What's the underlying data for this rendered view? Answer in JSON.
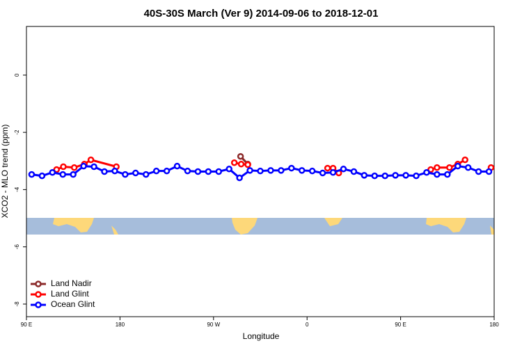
{
  "chart_data": {
    "type": "line",
    "title": "40S-30S March (Ver 9)   2014-09-06 to 2018-12-01",
    "xlabel": "Longitude",
    "ylabel": "XCO2 - MLO trend (ppm)",
    "xlim": [
      90,
      540
    ],
    "ylim": [
      -8.44,
      1.7
    ],
    "xticks": [
      {
        "value": 90,
        "label": "90 E"
      },
      180,
      {
        "value": 270,
        "label": "90 W"
      },
      {
        "value": 360,
        "label": "0"
      },
      {
        "value": 450,
        "label": "90 E"
      },
      {
        "value": 540,
        "label": "180"
      }
    ],
    "yticks": [
      0,
      -2,
      -4,
      -6,
      -8
    ],
    "legend": "bottom-left",
    "series": [
      {
        "name": "Land Nadir",
        "color": "#8b2a2a",
        "x": [
          296,
          303
        ],
        "values": [
          -2.84,
          -3.11
        ]
      },
      {
        "name": "Land Glint",
        "color": "#ff0000",
        "x": [
          119,
          125.5,
          136,
          145.7,
          152,
          176.5,
          null,
          290,
          296.6,
          303,
          null,
          379.7,
          385,
          390.5,
          null,
          479,
          485,
          497,
          505,
          512,
          null,
          537
        ],
        "values": [
          -3.3,
          -3.2,
          -3.23,
          -3.11,
          -2.96,
          -3.2,
          null,
          -3.06,
          -3.11,
          -3.13,
          null,
          -3.25,
          -3.25,
          -3.42,
          null,
          -3.3,
          -3.23,
          -3.23,
          -3.11,
          -2.96,
          null,
          -3.23
        ]
      },
      {
        "name": "Ocean Glint",
        "color": "#0000ff",
        "x": [
          95,
          105,
          115,
          125,
          135,
          145,
          155,
          165,
          175,
          185,
          195,
          205,
          215,
          225,
          235,
          245,
          255,
          265,
          275,
          285,
          295,
          305,
          315,
          325,
          335,
          345,
          355,
          365,
          375,
          385,
          395,
          405,
          415,
          425,
          435,
          445,
          455,
          465,
          475,
          485,
          495,
          505,
          515,
          525,
          535
        ],
        "values": [
          -3.47,
          -3.52,
          -3.4,
          -3.47,
          -3.47,
          -3.18,
          -3.2,
          -3.37,
          -3.35,
          -3.47,
          -3.42,
          -3.47,
          -3.35,
          -3.35,
          -3.18,
          -3.35,
          -3.37,
          -3.37,
          -3.37,
          -3.28,
          -3.59,
          -3.33,
          -3.35,
          -3.33,
          -3.33,
          -3.25,
          -3.33,
          -3.35,
          -3.42,
          -3.4,
          -3.28,
          -3.37,
          -3.5,
          -3.52,
          -3.52,
          -3.5,
          -3.5,
          -3.52,
          -3.4,
          -3.47,
          -3.47,
          -3.18,
          -3.23,
          -3.37,
          -3.37
        ]
      }
    ]
  }
}
